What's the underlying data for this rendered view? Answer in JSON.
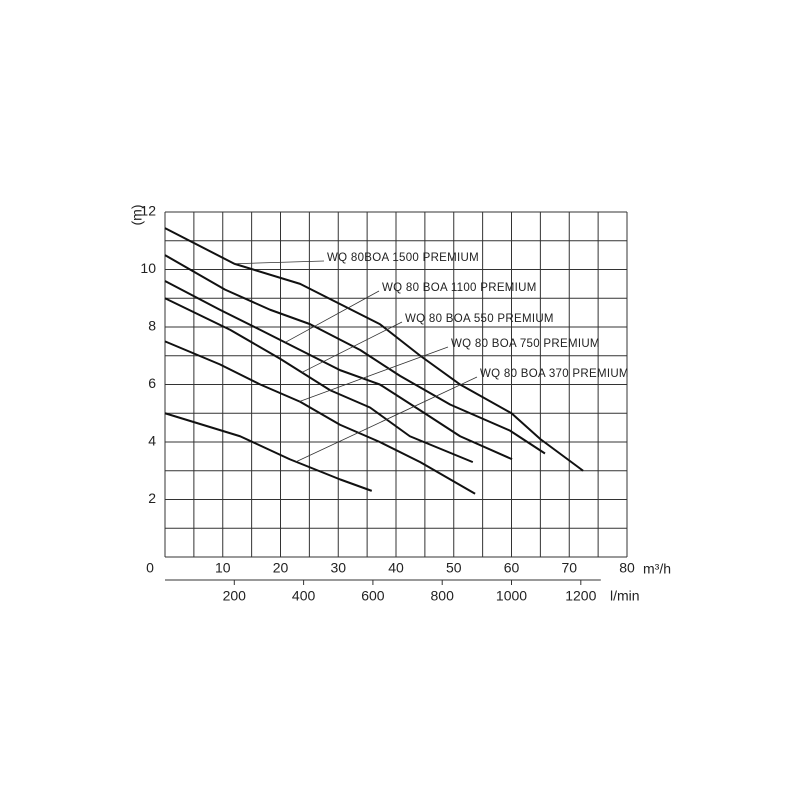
{
  "chart_data": {
    "type": "line",
    "y_label": "(m)",
    "x_label": "m³/h",
    "x2_label": "l/min",
    "xlim": [
      0,
      80
    ],
    "xticks": [
      0,
      10,
      20,
      30,
      40,
      50,
      60,
      70,
      80
    ],
    "ylim": [
      0,
      12
    ],
    "yticks": [
      2,
      4,
      6,
      8,
      10,
      12
    ],
    "x2lim": [
      0,
      1333.3
    ],
    "x2ticks": [
      200,
      400,
      600,
      800,
      1000,
      1200
    ],
    "xgrid": [
      0,
      5,
      10,
      15,
      20,
      25,
      30,
      35,
      40,
      45,
      50,
      55,
      60,
      65,
      70,
      75,
      80
    ],
    "ygrid": [
      0,
      1,
      2,
      3,
      4,
      5,
      6,
      7,
      8,
      9,
      10,
      11,
      12
    ],
    "series": [
      {
        "name": "WQ 80BOA 1500 PREMIUM",
        "color": "#111111",
        "x": [
          0,
          12,
          23.4,
          30.3,
          37.2,
          44.2,
          51.1,
          60,
          65,
          72.4
        ],
        "values": [
          11.44,
          10.2,
          9.5,
          8.8,
          8.1,
          7.0,
          6.0,
          5.0,
          4.1,
          3.0
        ]
      },
      {
        "color": "#111111",
        "x": [
          0,
          10.4,
          18.2,
          25.1,
          33.8,
          40.7,
          49.4,
          59.7,
          65.8
        ],
        "values": [
          10.5,
          9.3,
          8.6,
          8.1,
          7.2,
          6.3,
          5.3,
          4.4,
          3.6
        ]
      },
      {
        "name": "WQ 80 BOA 1100 PREMIUM",
        "color": "#111111",
        "x": [
          0,
          9.5,
          16.5,
          23.4,
          30.3,
          37.2,
          44.2,
          51.1,
          60.1
        ],
        "values": [
          9.6,
          8.6,
          7.9,
          7.2,
          6.5,
          6.0,
          5.1,
          4.2,
          3.4
        ]
      },
      {
        "name": "WQ 80 BOA 550 PREMIUM",
        "color": "#111111",
        "x": [
          0,
          11.3,
          19.9,
          28.6,
          35.5,
          42.4,
          53.3
        ],
        "values": [
          9.0,
          7.9,
          6.9,
          5.8,
          5.2,
          4.2,
          3.3
        ]
      },
      {
        "name": "WQ 80 BOA 750 PREMIUM",
        "color": "#111111",
        "x": [
          0,
          9.5,
          16.5,
          23.4,
          30.3,
          37.2,
          44.2,
          53.7
        ],
        "values": [
          7.5,
          6.7,
          6.0,
          5.4,
          4.6,
          4.0,
          3.3,
          2.2
        ]
      },
      {
        "name": "WQ 80 BOA 370 PREMIUM",
        "color": "#111111",
        "x": [
          0,
          13,
          21.6,
          30.3,
          35.8
        ],
        "values": [
          5.0,
          4.2,
          3.4,
          2.7,
          2.3
        ]
      }
    ]
  }
}
